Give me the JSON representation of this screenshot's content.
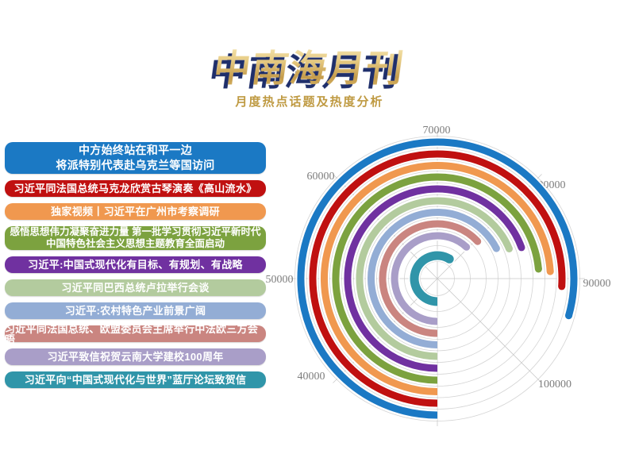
{
  "title": "中南海月刊",
  "subtitle": "月度热点话题及热度分析",
  "topics": [
    {
      "lines": [
        "中方始终站在和平一边",
        "将派特别代表赴乌克兰等国访问"
      ],
      "color": "#1B79C4",
      "value": 93500
    },
    {
      "lines": [
        "习近平同法国总统马克龙欣赏古琴演奏《高山流水》"
      ],
      "color": "#C01010",
      "value": 90800
    },
    {
      "lines": [
        "独家视频丨习近平在广州市考察调研"
      ],
      "color": "#F0984F",
      "value": 89200
    },
    {
      "lines": [
        "感悟思想伟力凝聚奋进力量 第一批学习贯彻习近平新时代",
        "中国特色社会主义思想主题教育全面启动"
      ],
      "color": "#7CA23F",
      "value": 88800
    },
    {
      "lines": [
        "习近平:中国式现代化有目标、有规划、有战略"
      ],
      "color": "#7031A0",
      "value": 85500
    },
    {
      "lines": [
        "习近平同巴西总统卢拉举行会谈"
      ],
      "color": "#B3CB9E",
      "value": 85000
    },
    {
      "lines": [
        "习近平:农村特色产业前景广阔"
      ],
      "color": "#93ADD5",
      "value": 84000
    },
    {
      "lines": [
        "习近平同法国总统、欧盟委员会主席举行中法欧三方会晤"
      ],
      "color": "#CA8580",
      "value": 80500
    },
    {
      "lines": [
        "习近平致信祝贺云南大学建校100周年"
      ],
      "color": "#A99EC8",
      "value": 79500
    },
    {
      "lines": [
        "习近平向“中国式现代化与世界”蓝厅论坛致贺信"
      ],
      "color": "#3095A9",
      "value": 77000
    }
  ],
  "chart_data": {
    "type": "bar",
    "subtype": "polar-radial-bar",
    "title": "中南海月刊",
    "subtitle": "月度热点话题及热度分析",
    "categories": [
      "中方始终站在和平一边 将派特别代表赴乌克兰等国访问",
      "习近平同法国总统马克龙欣赏古琴演奏《高山流水》",
      "独家视频丨习近平在广州市考察调研",
      "感悟思想伟力凝聚奋进力量 第一批学习贯彻习近平新时代中国特色社会主义思想主题教育全面启动",
      "习近平:中国式现代化有目标、有规划、有战略",
      "习近平同巴西总统卢拉举行会谈",
      "习近平:农村特色产业前景广阔",
      "习近平同法国总统、欧盟委员会主席举行中法欧三方会晤",
      "习近平致信祝贺云南大学建校100周年",
      "习近平向“中国式现代化与世界”蓝厅论坛致贺信"
    ],
    "values": [
      93500,
      90800,
      89200,
      88800,
      85500,
      85000,
      84000,
      80500,
      79500,
      77000
    ],
    "colors": [
      "#1B79C4",
      "#C01010",
      "#F0984F",
      "#7CA23F",
      "#7031A0",
      "#B3CB9E",
      "#93ADD5",
      "#CA8580",
      "#A99EC8",
      "#3095A9"
    ],
    "angle_axis": {
      "min": 30000,
      "max": 110000,
      "interval": 10000,
      "tick_labels": [
        "40000",
        "50000",
        "60000",
        "70000",
        "80000",
        "90000",
        "100000"
      ],
      "start_position": "bottom",
      "direction": "clockwise",
      "degrees_per_interval": 45
    },
    "radius_axis": "category (one ring per topic, outermost = rank 1)",
    "grid": true,
    "legend_position": "left"
  }
}
